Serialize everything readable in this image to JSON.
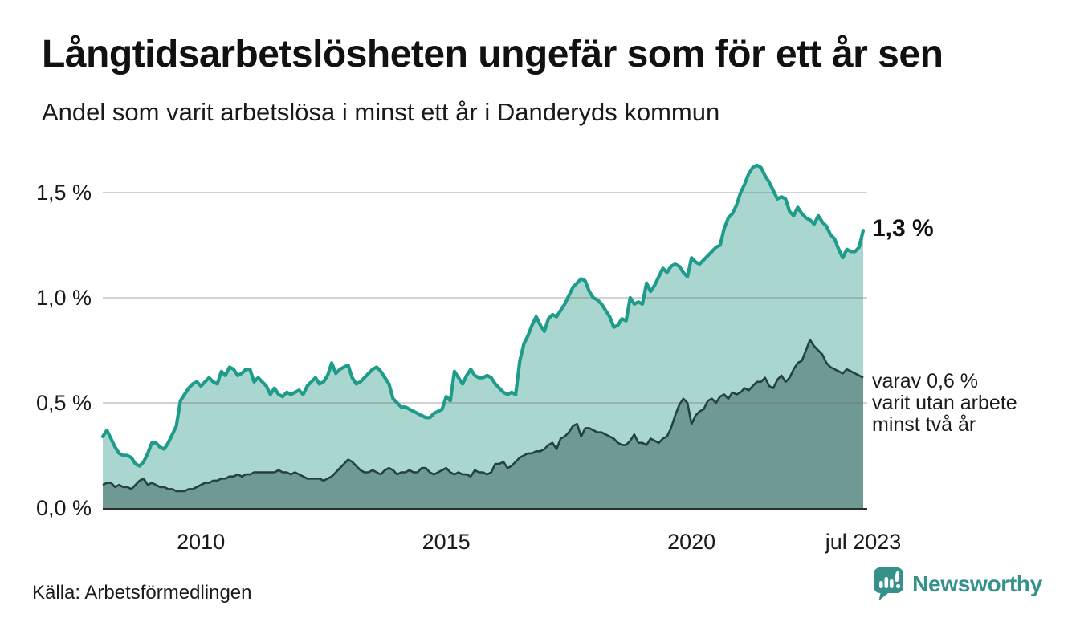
{
  "header": {
    "title": "Långtidsarbetslösheten ungefär som för ett år sen",
    "subtitle": "Andel som varit arbetslösa i minst ett år i Danderyds kommun"
  },
  "footer": {
    "source": "Källa: Arbetsförmedlingen",
    "brand": "Newsworthy",
    "brand_color": "#35918a",
    "logo_icon": "speech-bubble-bar-chart"
  },
  "chart_data": {
    "type": "area",
    "title": "Långtidsarbetslösheten ungefär som för ett år sen",
    "subtitle": "Andel som varit arbetslösa i minst ett år i Danderyds kommun",
    "x_start": "jan 2008",
    "x_end": "jul 2023",
    "frequency": "monthly",
    "ylim": [
      0,
      1.65
    ],
    "grid": true,
    "y_ticks": [
      {
        "label": "0,0 %",
        "value": 0
      },
      {
        "label": "0,5 %",
        "value": 0.5
      },
      {
        "label": "1,0 %",
        "value": 1.0
      },
      {
        "label": "1,5 %",
        "value": 1.5
      }
    ],
    "x_ticks": [
      {
        "label": "2010",
        "month_index": 24
      },
      {
        "label": "2015",
        "month_index": 84
      },
      {
        "label": "2020",
        "month_index": 144
      },
      {
        "label": "jul 2023",
        "month_index": 186
      }
    ],
    "series": [
      {
        "name": "Andel som varit arbetslösa i minst ett år",
        "end_label": "1,3 %",
        "end_value": 1.3,
        "color": "#1e9b8b",
        "fill": "#a9d6ce",
        "values": [
          0.34,
          0.37,
          0.33,
          0.29,
          0.26,
          0.25,
          0.25,
          0.24,
          0.21,
          0.2,
          0.22,
          0.26,
          0.31,
          0.31,
          0.29,
          0.28,
          0.31,
          0.35,
          0.39,
          0.51,
          0.54,
          0.57,
          0.59,
          0.6,
          0.58,
          0.6,
          0.62,
          0.6,
          0.59,
          0.65,
          0.63,
          0.67,
          0.66,
          0.63,
          0.64,
          0.66,
          0.66,
          0.6,
          0.62,
          0.6,
          0.58,
          0.54,
          0.57,
          0.54,
          0.53,
          0.55,
          0.54,
          0.55,
          0.56,
          0.54,
          0.58,
          0.6,
          0.62,
          0.59,
          0.6,
          0.63,
          0.69,
          0.64,
          0.66,
          0.67,
          0.68,
          0.62,
          0.59,
          0.6,
          0.62,
          0.64,
          0.66,
          0.67,
          0.65,
          0.62,
          0.59,
          0.52,
          0.5,
          0.48,
          0.48,
          0.47,
          0.46,
          0.45,
          0.44,
          0.43,
          0.43,
          0.45,
          0.46,
          0.47,
          0.53,
          0.51,
          0.65,
          0.62,
          0.59,
          0.63,
          0.66,
          0.63,
          0.62,
          0.62,
          0.63,
          0.62,
          0.59,
          0.57,
          0.55,
          0.54,
          0.55,
          0.54,
          0.7,
          0.78,
          0.82,
          0.87,
          0.91,
          0.87,
          0.84,
          0.9,
          0.92,
          0.91,
          0.94,
          0.97,
          1.01,
          1.05,
          1.07,
          1.09,
          1.08,
          1.03,
          1.0,
          0.99,
          0.97,
          0.94,
          0.91,
          0.86,
          0.87,
          0.9,
          0.89,
          1.0,
          0.97,
          0.98,
          0.97,
          1.07,
          1.03,
          1.06,
          1.1,
          1.14,
          1.12,
          1.15,
          1.16,
          1.15,
          1.12,
          1.1,
          1.19,
          1.17,
          1.16,
          1.18,
          1.2,
          1.22,
          1.24,
          1.25,
          1.33,
          1.38,
          1.4,
          1.44,
          1.5,
          1.54,
          1.59,
          1.62,
          1.63,
          1.62,
          1.58,
          1.55,
          1.51,
          1.47,
          1.48,
          1.47,
          1.41,
          1.39,
          1.43,
          1.4,
          1.38,
          1.37,
          1.35,
          1.39,
          1.36,
          1.34,
          1.3,
          1.28,
          1.23,
          1.19,
          1.23,
          1.22,
          1.22,
          1.24,
          1.32
        ]
      },
      {
        "name": "varav utan arbete minst två år",
        "annotation_lines": [
          "varav 0,6 %",
          "varit utan arbete",
          "minst två år"
        ],
        "end_value": 0.6,
        "color": "#24423e",
        "fill": "#6f9a94",
        "values": [
          0.11,
          0.12,
          0.12,
          0.1,
          0.11,
          0.1,
          0.1,
          0.09,
          0.11,
          0.13,
          0.14,
          0.11,
          0.12,
          0.11,
          0.1,
          0.1,
          0.09,
          0.09,
          0.08,
          0.08,
          0.08,
          0.09,
          0.09,
          0.1,
          0.11,
          0.12,
          0.12,
          0.13,
          0.13,
          0.14,
          0.14,
          0.15,
          0.15,
          0.16,
          0.15,
          0.16,
          0.16,
          0.17,
          0.17,
          0.17,
          0.17,
          0.17,
          0.17,
          0.18,
          0.17,
          0.17,
          0.16,
          0.17,
          0.16,
          0.15,
          0.14,
          0.14,
          0.14,
          0.14,
          0.13,
          0.14,
          0.15,
          0.17,
          0.19,
          0.21,
          0.23,
          0.22,
          0.2,
          0.18,
          0.17,
          0.17,
          0.18,
          0.17,
          0.16,
          0.18,
          0.19,
          0.18,
          0.16,
          0.17,
          0.17,
          0.18,
          0.17,
          0.17,
          0.19,
          0.19,
          0.17,
          0.16,
          0.17,
          0.18,
          0.19,
          0.17,
          0.16,
          0.17,
          0.16,
          0.16,
          0.15,
          0.18,
          0.17,
          0.17,
          0.16,
          0.17,
          0.21,
          0.21,
          0.22,
          0.19,
          0.2,
          0.22,
          0.24,
          0.25,
          0.26,
          0.26,
          0.27,
          0.27,
          0.28,
          0.3,
          0.31,
          0.28,
          0.33,
          0.34,
          0.36,
          0.39,
          0.4,
          0.34,
          0.38,
          0.38,
          0.37,
          0.36,
          0.36,
          0.35,
          0.34,
          0.33,
          0.31,
          0.3,
          0.3,
          0.32,
          0.35,
          0.31,
          0.31,
          0.3,
          0.33,
          0.32,
          0.31,
          0.33,
          0.34,
          0.38,
          0.44,
          0.49,
          0.52,
          0.5,
          0.4,
          0.44,
          0.46,
          0.47,
          0.51,
          0.52,
          0.5,
          0.53,
          0.54,
          0.52,
          0.55,
          0.54,
          0.55,
          0.57,
          0.56,
          0.58,
          0.6,
          0.6,
          0.62,
          0.58,
          0.57,
          0.61,
          0.63,
          0.6,
          0.62,
          0.66,
          0.69,
          0.7,
          0.75,
          0.8,
          0.77,
          0.75,
          0.73,
          0.69,
          0.67,
          0.66,
          0.65,
          0.64,
          0.66,
          0.65,
          0.64,
          0.63,
          0.62
        ]
      }
    ]
  }
}
